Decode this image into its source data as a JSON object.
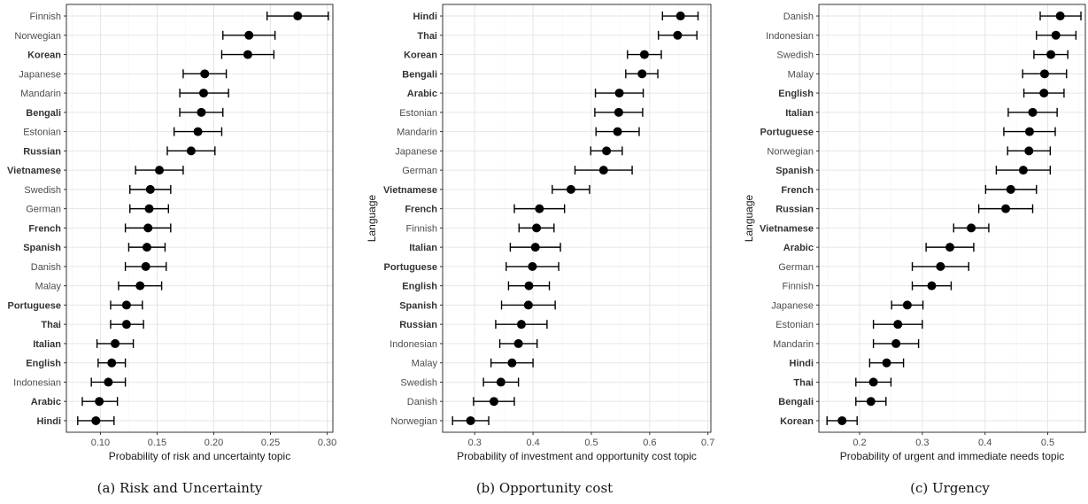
{
  "chart_data": [
    {
      "type": "scatter",
      "id": "risk",
      "caption": "(a) Risk and Uncertainty",
      "xlabel": "Probability of risk and uncertainty topic",
      "ylabel": "",
      "xlim": [
        0.07,
        0.305
      ],
      "xticks": [
        0.1,
        0.15,
        0.2,
        0.25,
        0.3
      ],
      "xtick_labels": [
        "0.10",
        "0.15",
        "0.20",
        "0.25",
        "0.30"
      ],
      "grid": true,
      "points": [
        {
          "label": "Finnish",
          "bold": false,
          "value": 0.274,
          "low": 0.247,
          "high": 0.301
        },
        {
          "label": "Norwegian",
          "bold": false,
          "value": 0.231,
          "low": 0.208,
          "high": 0.254
        },
        {
          "label": "Korean",
          "bold": true,
          "value": 0.23,
          "low": 0.207,
          "high": 0.253
        },
        {
          "label": "Japanese",
          "bold": false,
          "value": 0.192,
          "low": 0.173,
          "high": 0.211
        },
        {
          "label": "Mandarin",
          "bold": false,
          "value": 0.191,
          "low": 0.17,
          "high": 0.213
        },
        {
          "label": "Bengali",
          "bold": true,
          "value": 0.189,
          "low": 0.17,
          "high": 0.208
        },
        {
          "label": "Estonian",
          "bold": false,
          "value": 0.186,
          "low": 0.165,
          "high": 0.207
        },
        {
          "label": "Russian",
          "bold": true,
          "value": 0.18,
          "low": 0.159,
          "high": 0.201
        },
        {
          "label": "Vietnamese",
          "bold": true,
          "value": 0.152,
          "low": 0.131,
          "high": 0.173
        },
        {
          "label": "Swedish",
          "bold": false,
          "value": 0.144,
          "low": 0.126,
          "high": 0.162
        },
        {
          "label": "German",
          "bold": false,
          "value": 0.143,
          "low": 0.126,
          "high": 0.16
        },
        {
          "label": "French",
          "bold": true,
          "value": 0.142,
          "low": 0.122,
          "high": 0.162
        },
        {
          "label": "Spanish",
          "bold": true,
          "value": 0.141,
          "low": 0.125,
          "high": 0.157
        },
        {
          "label": "Danish",
          "bold": false,
          "value": 0.14,
          "low": 0.122,
          "high": 0.158
        },
        {
          "label": "Malay",
          "bold": false,
          "value": 0.135,
          "low": 0.116,
          "high": 0.154
        },
        {
          "label": "Portuguese",
          "bold": true,
          "value": 0.123,
          "low": 0.109,
          "high": 0.137
        },
        {
          "label": "Thai",
          "bold": true,
          "value": 0.123,
          "low": 0.109,
          "high": 0.138
        },
        {
          "label": "Italian",
          "bold": true,
          "value": 0.113,
          "low": 0.097,
          "high": 0.129
        },
        {
          "label": "English",
          "bold": true,
          "value": 0.11,
          "low": 0.098,
          "high": 0.122
        },
        {
          "label": "Indonesian",
          "bold": false,
          "value": 0.107,
          "low": 0.092,
          "high": 0.122
        },
        {
          "label": "Arabic",
          "bold": true,
          "value": 0.099,
          "low": 0.084,
          "high": 0.115
        },
        {
          "label": "Hindi",
          "bold": true,
          "value": 0.096,
          "low": 0.08,
          "high": 0.112
        }
      ]
    },
    {
      "type": "scatter",
      "id": "opportunity",
      "caption": "(b) Opportunity cost",
      "xlabel": "Probability of investment and opportunity cost topic",
      "ylabel": "Language",
      "xlim": [
        0.245,
        0.705
      ],
      "xticks": [
        0.3,
        0.4,
        0.5,
        0.6,
        0.7
      ],
      "xtick_labels": [
        "0.3",
        "0.4",
        "0.5",
        "0.6",
        "0.7"
      ],
      "grid": true,
      "points": [
        {
          "label": "Hindi",
          "bold": true,
          "value": 0.653,
          "low": 0.622,
          "high": 0.683
        },
        {
          "label": "Thai",
          "bold": true,
          "value": 0.648,
          "low": 0.615,
          "high": 0.681
        },
        {
          "label": "Korean",
          "bold": true,
          "value": 0.591,
          "low": 0.562,
          "high": 0.62
        },
        {
          "label": "Bengali",
          "bold": true,
          "value": 0.587,
          "low": 0.559,
          "high": 0.614
        },
        {
          "label": "Arabic",
          "bold": true,
          "value": 0.548,
          "low": 0.507,
          "high": 0.589
        },
        {
          "label": "Estonian",
          "bold": false,
          "value": 0.547,
          "low": 0.506,
          "high": 0.588
        },
        {
          "label": "Mandarin",
          "bold": false,
          "value": 0.545,
          "low": 0.508,
          "high": 0.582
        },
        {
          "label": "Japanese",
          "bold": false,
          "value": 0.526,
          "low": 0.499,
          "high": 0.553
        },
        {
          "label": "German",
          "bold": false,
          "value": 0.521,
          "low": 0.472,
          "high": 0.57
        },
        {
          "label": "Vietnamese",
          "bold": true,
          "value": 0.465,
          "low": 0.433,
          "high": 0.497
        },
        {
          "label": "French",
          "bold": true,
          "value": 0.411,
          "low": 0.368,
          "high": 0.454
        },
        {
          "label": "Finnish",
          "bold": false,
          "value": 0.406,
          "low": 0.376,
          "high": 0.436
        },
        {
          "label": "Italian",
          "bold": true,
          "value": 0.404,
          "low": 0.361,
          "high": 0.447
        },
        {
          "label": "Portuguese",
          "bold": true,
          "value": 0.399,
          "low": 0.354,
          "high": 0.444
        },
        {
          "label": "English",
          "bold": true,
          "value": 0.393,
          "low": 0.358,
          "high": 0.428
        },
        {
          "label": "Spanish",
          "bold": true,
          "value": 0.392,
          "low": 0.346,
          "high": 0.438
        },
        {
          "label": "Russian",
          "bold": true,
          "value": 0.38,
          "low": 0.336,
          "high": 0.424
        },
        {
          "label": "Indonesian",
          "bold": false,
          "value": 0.375,
          "low": 0.343,
          "high": 0.407
        },
        {
          "label": "Malay",
          "bold": false,
          "value": 0.364,
          "low": 0.328,
          "high": 0.4
        },
        {
          "label": "Swedish",
          "bold": false,
          "value": 0.345,
          "low": 0.315,
          "high": 0.375
        },
        {
          "label": "Danish",
          "bold": false,
          "value": 0.333,
          "low": 0.298,
          "high": 0.368
        },
        {
          "label": "Norwegian",
          "bold": false,
          "value": 0.293,
          "low": 0.262,
          "high": 0.324
        }
      ]
    },
    {
      "type": "scatter",
      "id": "urgency",
      "caption": "(c) Urgency",
      "xlabel": "Probability of urgent and immediate needs topic",
      "ylabel": "Language",
      "xlim": [
        0.135,
        0.56
      ],
      "xticks": [
        0.2,
        0.3,
        0.4,
        0.5
      ],
      "xtick_labels": [
        "0.2",
        "0.3",
        "0.4",
        "0.5"
      ],
      "grid": true,
      "points": [
        {
          "label": "Danish",
          "bold": false,
          "value": 0.52,
          "low": 0.488,
          "high": 0.553
        },
        {
          "label": "Indonesian",
          "bold": false,
          "value": 0.513,
          "low": 0.482,
          "high": 0.545
        },
        {
          "label": "Swedish",
          "bold": false,
          "value": 0.505,
          "low": 0.478,
          "high": 0.532
        },
        {
          "label": "Malay",
          "bold": false,
          "value": 0.495,
          "low": 0.46,
          "high": 0.53
        },
        {
          "label": "English",
          "bold": true,
          "value": 0.494,
          "low": 0.462,
          "high": 0.526
        },
        {
          "label": "Italian",
          "bold": true,
          "value": 0.476,
          "low": 0.437,
          "high": 0.515
        },
        {
          "label": "Portuguese",
          "bold": true,
          "value": 0.471,
          "low": 0.43,
          "high": 0.512
        },
        {
          "label": "Norwegian",
          "bold": false,
          "value": 0.47,
          "low": 0.436,
          "high": 0.504
        },
        {
          "label": "Spanish",
          "bold": true,
          "value": 0.461,
          "low": 0.418,
          "high": 0.504
        },
        {
          "label": "French",
          "bold": true,
          "value": 0.441,
          "low": 0.401,
          "high": 0.482
        },
        {
          "label": "Russian",
          "bold": true,
          "value": 0.433,
          "low": 0.39,
          "high": 0.476
        },
        {
          "label": "Vietnamese",
          "bold": true,
          "value": 0.378,
          "low": 0.35,
          "high": 0.406
        },
        {
          "label": "Arabic",
          "bold": true,
          "value": 0.344,
          "low": 0.306,
          "high": 0.382
        },
        {
          "label": "German",
          "bold": false,
          "value": 0.329,
          "low": 0.284,
          "high": 0.374
        },
        {
          "label": "Finnish",
          "bold": false,
          "value": 0.315,
          "low": 0.284,
          "high": 0.346
        },
        {
          "label": "Japanese",
          "bold": false,
          "value": 0.276,
          "low": 0.251,
          "high": 0.301
        },
        {
          "label": "Estonian",
          "bold": false,
          "value": 0.261,
          "low": 0.222,
          "high": 0.3
        },
        {
          "label": "Mandarin",
          "bold": false,
          "value": 0.258,
          "low": 0.222,
          "high": 0.294
        },
        {
          "label": "Hindi",
          "bold": true,
          "value": 0.243,
          "low": 0.216,
          "high": 0.27
        },
        {
          "label": "Thai",
          "bold": true,
          "value": 0.222,
          "low": 0.194,
          "high": 0.25
        },
        {
          "label": "Bengali",
          "bold": true,
          "value": 0.218,
          "low": 0.194,
          "high": 0.242
        },
        {
          "label": "Korean",
          "bold": true,
          "value": 0.172,
          "low": 0.148,
          "high": 0.196
        }
      ]
    }
  ]
}
